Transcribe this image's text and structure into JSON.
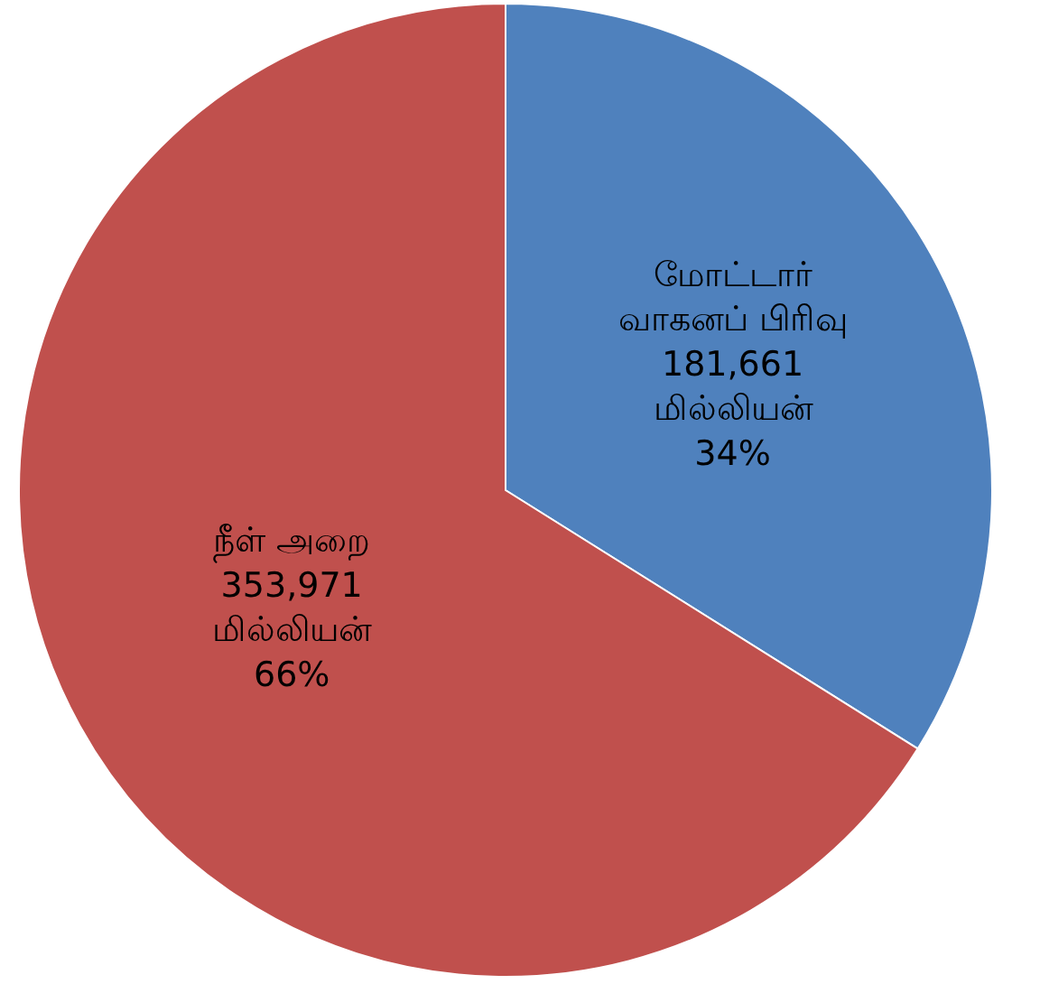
{
  "chart_data": {
    "type": "pie",
    "categories": [
      "மோட்டார்\nவாகனப் பிரிவு",
      "நீள் அறை"
    ],
    "values": [
      181661,
      353971
    ],
    "value_labels": [
      "181,661\nமில்லியன்\n34%",
      "353,971\nமில்லியன்\n66%"
    ],
    "colors": [
      "#4f81bd",
      "#c0504d"
    ],
    "legend": false
  }
}
